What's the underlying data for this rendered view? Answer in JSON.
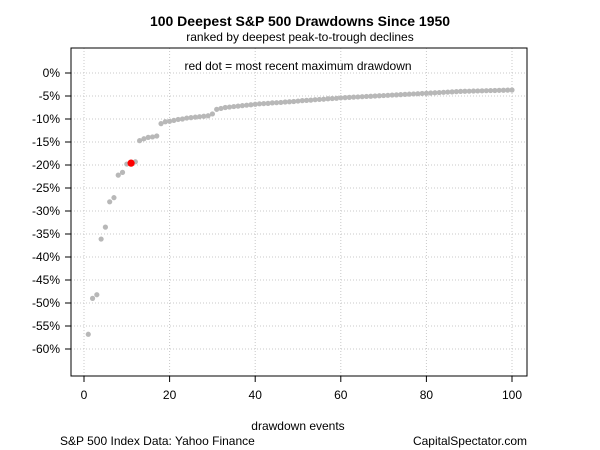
{
  "chart_data": {
    "type": "scatter",
    "title": "100 Deepest S&P 500 Drawdowns Since 1950",
    "subtitle": "ranked by deepest peak-to-trough declines",
    "xlabel": "drawdown events",
    "ylabel": "",
    "annotation": "red dot = most recent maximum drawdown",
    "source_left": "S&P 500 Index Data: Yahoo Finance",
    "source_right": "CapitalSpectator.com",
    "xlim": [
      0,
      100
    ],
    "ylim": [
      -65,
      2
    ],
    "x_ticks": [
      0,
      20,
      40,
      60,
      80,
      100
    ],
    "x_tick_labels": [
      "0",
      "20",
      "40",
      "60",
      "80",
      "100"
    ],
    "y_ticks": [
      0,
      -5,
      -10,
      -15,
      -20,
      -25,
      -30,
      -35,
      -40,
      -45,
      -50,
      -55,
      -60
    ],
    "y_tick_labels": [
      "0%",
      "-5%",
      "-10%",
      "-15%",
      "-20%",
      "-25%",
      "-30%",
      "-35%",
      "-40%",
      "-45%",
      "-50%",
      "-55%",
      "-60%"
    ],
    "grid": true,
    "series": [
      {
        "color": "#b8b8b8",
        "highlight_index": 10,
        "highlight_color": "#ff0000",
        "x": [
          1,
          2,
          3,
          4,
          5,
          6,
          7,
          8,
          9,
          10,
          11,
          12,
          13,
          14,
          15,
          16,
          17,
          18,
          19,
          20,
          21,
          22,
          23,
          24,
          25,
          26,
          27,
          28,
          29,
          30,
          31,
          32,
          33,
          34,
          35,
          36,
          37,
          38,
          39,
          40,
          41,
          42,
          43,
          44,
          45,
          46,
          47,
          48,
          49,
          50,
          51,
          52,
          53,
          54,
          55,
          56,
          57,
          58,
          59,
          60,
          61,
          62,
          63,
          64,
          65,
          66,
          67,
          68,
          69,
          70,
          71,
          72,
          73,
          74,
          75,
          76,
          77,
          78,
          79,
          80,
          81,
          82,
          83,
          84,
          85,
          86,
          87,
          88,
          89,
          90,
          91,
          92,
          93,
          94,
          95,
          96,
          97,
          98,
          99,
          100
        ],
        "y": [
          -56.8,
          -49.0,
          -48.2,
          -36.1,
          -33.5,
          -28.0,
          -27.1,
          -22.2,
          -21.6,
          -19.8,
          -19.6,
          -19.3,
          -14.7,
          -14.3,
          -14.0,
          -13.9,
          -13.7,
          -11.0,
          -10.6,
          -10.5,
          -10.3,
          -10.1,
          -10.0,
          -9.8,
          -9.7,
          -9.6,
          -9.5,
          -9.4,
          -9.3,
          -8.9,
          -7.9,
          -7.7,
          -7.5,
          -7.4,
          -7.3,
          -7.2,
          -7.1,
          -7.0,
          -6.9,
          -6.8,
          -6.7,
          -6.65,
          -6.6,
          -6.5,
          -6.45,
          -6.4,
          -6.3,
          -6.25,
          -6.2,
          -6.1,
          -6.0,
          -5.95,
          -5.9,
          -5.8,
          -5.75,
          -5.7,
          -5.6,
          -5.55,
          -5.5,
          -5.4,
          -5.35,
          -5.3,
          -5.25,
          -5.2,
          -5.15,
          -5.1,
          -5.05,
          -5.0,
          -4.95,
          -4.9,
          -4.85,
          -4.8,
          -4.75,
          -4.7,
          -4.65,
          -4.6,
          -4.55,
          -4.5,
          -4.45,
          -4.4,
          -4.35,
          -4.3,
          -4.25,
          -4.2,
          -4.15,
          -4.1,
          -4.05,
          -4.0,
          -3.97,
          -3.95,
          -3.92,
          -3.9,
          -3.87,
          -3.85,
          -3.82,
          -3.8,
          -3.77,
          -3.75,
          -3.72,
          -3.7
        ]
      }
    ]
  }
}
